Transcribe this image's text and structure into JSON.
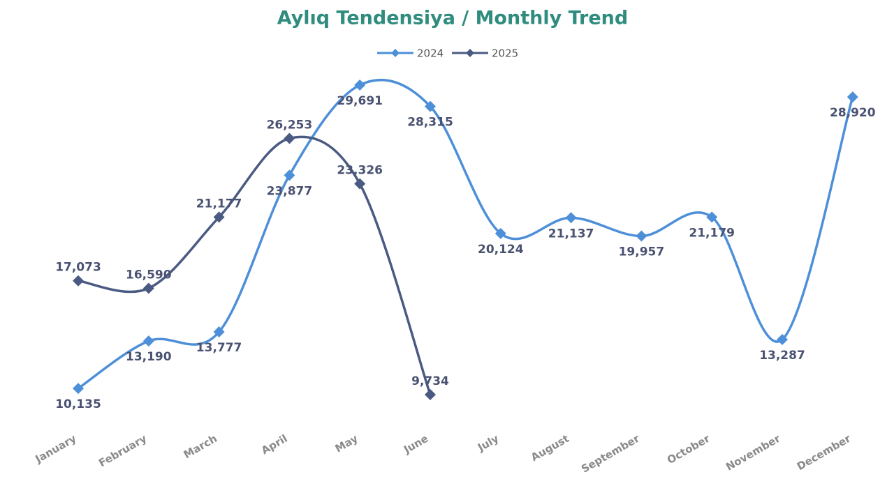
{
  "chart_data": {
    "type": "line",
    "title": "Aylıq Tendensiya  /  Monthly Trend",
    "categories": [
      "January",
      "February",
      "March",
      "April",
      "May",
      "June",
      "July",
      "August",
      "September",
      "October",
      "November",
      "December"
    ],
    "series": [
      {
        "name": "2024",
        "color": "#4d8fd8",
        "values": [
          10135,
          13190,
          13777,
          23877,
          29691,
          28315,
          20124,
          21137,
          19957,
          21179,
          13287,
          28920
        ],
        "value_labels": [
          "10,135",
          "13,190",
          "13,777",
          "23,877",
          "29,691",
          "28,315",
          "20,124",
          "21,137",
          "19,957",
          "21,179",
          "13,287",
          "28,920"
        ]
      },
      {
        "name": "2025",
        "color": "#4a5a82",
        "values": [
          17073,
          16590,
          21177,
          26253,
          23326,
          9734,
          null,
          null,
          null,
          null,
          null,
          null
        ],
        "value_labels": [
          "17,073",
          "16,590",
          "21,177",
          "26,253",
          "23,326",
          "9,734",
          null,
          null,
          null,
          null,
          null,
          null
        ]
      }
    ],
    "legend": "top"
  }
}
